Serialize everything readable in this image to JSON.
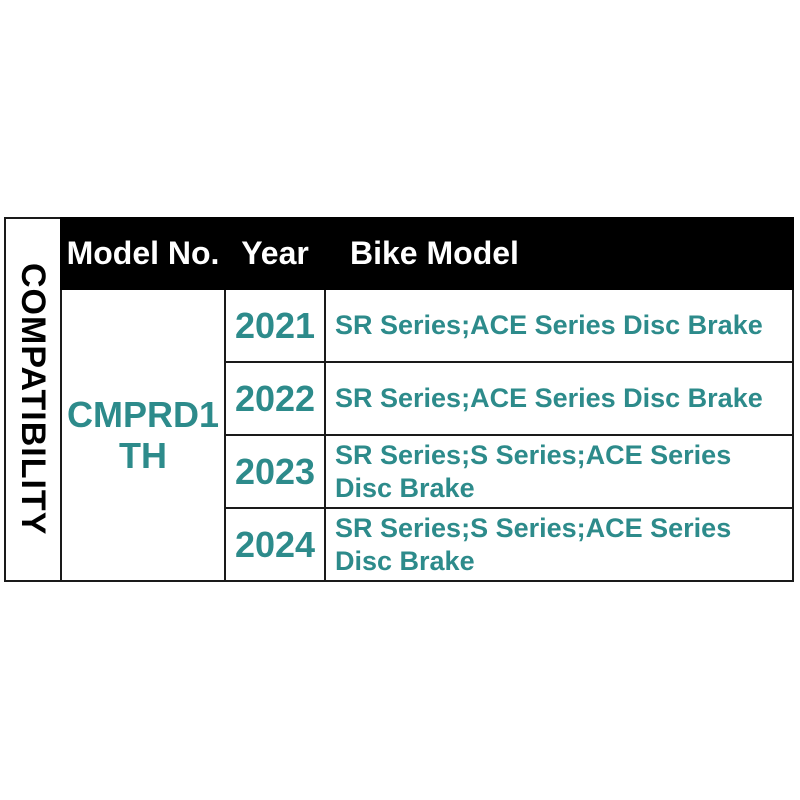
{
  "colors": {
    "header_bg": "#000000",
    "header_text": "#ffffff",
    "accent_teal": "#2d8b8b",
    "border": "#1a1a1a",
    "background": "#ffffff"
  },
  "sidebar": {
    "label": "COMPATIBILITY"
  },
  "table": {
    "headers": {
      "model_no": "Model No.",
      "year": "Year",
      "bike_model": "Bike Model"
    },
    "model_no": "CMPRD1 TH",
    "rows": [
      {
        "year": "2021",
        "bike_model": "SR Series;ACE Series Disc Brake"
      },
      {
        "year": "2022",
        "bike_model": "SR Series;ACE Series Disc Brake"
      },
      {
        "year": "2023",
        "bike_model": "SR Series;S Series;ACE Series Disc Brake"
      },
      {
        "year": "2024",
        "bike_model": "SR Series;S Series;ACE Series Disc Brake"
      }
    ]
  },
  "chart_data": {
    "type": "table",
    "title": "COMPATIBILITY",
    "columns": [
      "Model No.",
      "Year",
      "Bike Model"
    ],
    "rows": [
      [
        "CMPRD1 TH",
        "2021",
        "SR Series;ACE Series Disc Brake"
      ],
      [
        "CMPRD1 TH",
        "2022",
        "SR Series;ACE Series Disc Brake"
      ],
      [
        "CMPRD1 TH",
        "2023",
        "SR Series;S Series;ACE Series Disc Brake"
      ],
      [
        "CMPRD1 TH",
        "2024",
        "SR Series;S Series;ACE Series Disc Brake"
      ]
    ]
  }
}
